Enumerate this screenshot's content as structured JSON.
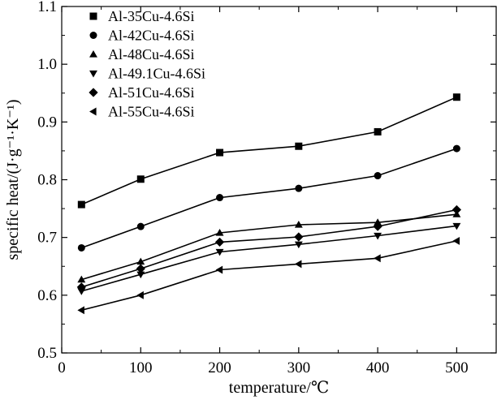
{
  "chart_data": {
    "type": "line",
    "xlabel": "temperature/℃",
    "ylabel": "specific heat/(J·g⁻¹·K⁻¹)",
    "xlim": [
      0,
      550
    ],
    "ylim": [
      0.5,
      1.1
    ],
    "x_ticks": [
      0,
      100,
      200,
      300,
      400,
      500
    ],
    "y_ticks": [
      0.5,
      0.6,
      0.7,
      0.8,
      0.9,
      1.0,
      1.1
    ],
    "x_tick_labels": [
      "0",
      "100",
      "200",
      "300",
      "400",
      "500"
    ],
    "y_tick_labels": [
      "0.5",
      "0.6",
      "0.7",
      "0.8",
      "0.9",
      "1.0",
      "1.1"
    ],
    "x": [
      25,
      100,
      200,
      300,
      400,
      500
    ],
    "grid": false,
    "legend_position": "top-left",
    "series": [
      {
        "name": "Al-35Cu-4.6Si",
        "marker": "square",
        "values": [
          0.757,
          0.801,
          0.847,
          0.858,
          0.883,
          0.943
        ]
      },
      {
        "name": "Al-42Cu-4.6Si",
        "marker": "circle",
        "values": [
          0.682,
          0.719,
          0.769,
          0.785,
          0.807,
          0.854
        ]
      },
      {
        "name": "Al-48Cu-4.6Si",
        "marker": "triangle-up",
        "values": [
          0.627,
          0.658,
          0.708,
          0.722,
          0.726,
          0.74
        ]
      },
      {
        "name": "Al-49.1Cu-4.6Si",
        "marker": "triangle-down",
        "values": [
          0.607,
          0.636,
          0.675,
          0.688,
          0.703,
          0.72
        ]
      },
      {
        "name": "Al-51Cu-4.6Si",
        "marker": "diamond",
        "values": [
          0.614,
          0.646,
          0.692,
          0.701,
          0.719,
          0.748
        ]
      },
      {
        "name": "Al-55Cu-4.6Si",
        "marker": "triangle-left",
        "values": [
          0.574,
          0.6,
          0.644,
          0.654,
          0.664,
          0.694
        ]
      }
    ]
  }
}
